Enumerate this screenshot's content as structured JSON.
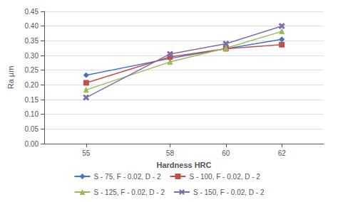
{
  "chart_data": {
    "type": "line",
    "x": [
      55,
      58,
      60,
      62
    ],
    "series": [
      {
        "name": "S - 75, F - 0.02, D - 2",
        "values": [
          0.233,
          0.29,
          0.323,
          0.355
        ],
        "color": "#4472C4",
        "marker": "diamond"
      },
      {
        "name": "S - 100, F - 0.02, D - 2",
        "values": [
          0.207,
          0.295,
          0.323,
          0.337
        ],
        "color": "#C0504D",
        "marker": "square"
      },
      {
        "name": "S - 125, F - 0.02, D - 2",
        "values": [
          0.183,
          0.278,
          0.325,
          0.382
        ],
        "color": "#9BBB59",
        "marker": "triangle"
      },
      {
        "name": "S - 150, F - 0.02, D - 2",
        "values": [
          0.157,
          0.305,
          0.34,
          0.4
        ],
        "color": "#7B6FAB",
        "marker": "x"
      }
    ],
    "xlabel": "Hardness HRC",
    "ylabel": "Ra µm",
    "xlim": [
      53.5,
      63.5
    ],
    "xticks": [
      55,
      58,
      60,
      62
    ],
    "ylim": [
      0.0,
      0.45
    ],
    "yticks": [
      {
        "value": 0.0,
        "label": "0.00"
      },
      {
        "value": 0.05,
        "label": "0.05"
      },
      {
        "value": 0.1,
        "label": "0.10"
      },
      {
        "value": 0.15,
        "label": "0.15"
      },
      {
        "value": 0.2,
        "label": "0.20"
      },
      {
        "value": 0.25,
        "label": "0.25"
      },
      {
        "value": 0.3,
        "label": "0.30"
      },
      {
        "value": 0.35,
        "label": "0.35"
      },
      {
        "value": 0.4,
        "label": "0.40"
      },
      {
        "value": 0.45,
        "label": "0.45"
      }
    ],
    "grid": "y",
    "legend": "bottom"
  }
}
